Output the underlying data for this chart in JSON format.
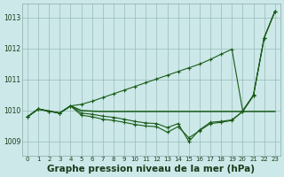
{
  "background_color": "#cce8e8",
  "grid_color": "#99bbbb",
  "line_color": "#1a5c1a",
  "title": "Graphe pression niveau de la mer (hPa)",
  "title_fontsize": 7.5,
  "xlim": [
    -0.5,
    23.5
  ],
  "ylim": [
    1008.55,
    1013.45
  ],
  "yticks": [
    1009,
    1010,
    1011,
    1012,
    1013
  ],
  "xticks": [
    0,
    1,
    2,
    3,
    4,
    5,
    6,
    7,
    8,
    9,
    10,
    11,
    12,
    13,
    14,
    15,
    16,
    17,
    18,
    19,
    20,
    21,
    22,
    23
  ],
  "series_flat": [
    1009.8,
    1010.05,
    1009.98,
    1009.92,
    1010.15,
    1010.0,
    1009.98,
    1009.97,
    1009.97,
    1009.97,
    1009.97,
    1009.97,
    1009.97,
    1009.97,
    1009.97,
    1009.97,
    1009.97,
    1009.97,
    1009.97,
    1009.97,
    1009.97,
    1009.97,
    1009.97,
    1009.97
  ],
  "series_diagonal": [
    1009.8,
    1010.05,
    1009.98,
    1009.92,
    1010.15,
    1010.2,
    1010.3,
    1010.42,
    1010.54,
    1010.66,
    1010.78,
    1010.9,
    1011.02,
    1011.14,
    1011.26,
    1011.38,
    1011.5,
    1011.65,
    1011.82,
    1011.98,
    1010.0,
    1010.5,
    1012.35,
    1013.2
  ],
  "series_dip1": [
    1009.8,
    1010.05,
    1009.98,
    1009.92,
    1010.15,
    1009.85,
    1009.8,
    1009.72,
    1009.68,
    1009.62,
    1009.55,
    1009.5,
    1009.48,
    1009.3,
    1009.48,
    1009.12,
    1009.35,
    1009.58,
    1009.62,
    1009.68,
    1009.97,
    1010.48,
    1012.35,
    1013.2
  ],
  "series_dip2": [
    1009.8,
    1010.05,
    1009.98,
    1009.92,
    1010.15,
    1009.92,
    1009.88,
    1009.82,
    1009.78,
    1009.72,
    1009.65,
    1009.6,
    1009.58,
    1009.45,
    1009.58,
    1009.0,
    1009.38,
    1009.62,
    1009.65,
    1009.7,
    1009.97,
    1010.48,
    1012.35,
    1013.2
  ]
}
